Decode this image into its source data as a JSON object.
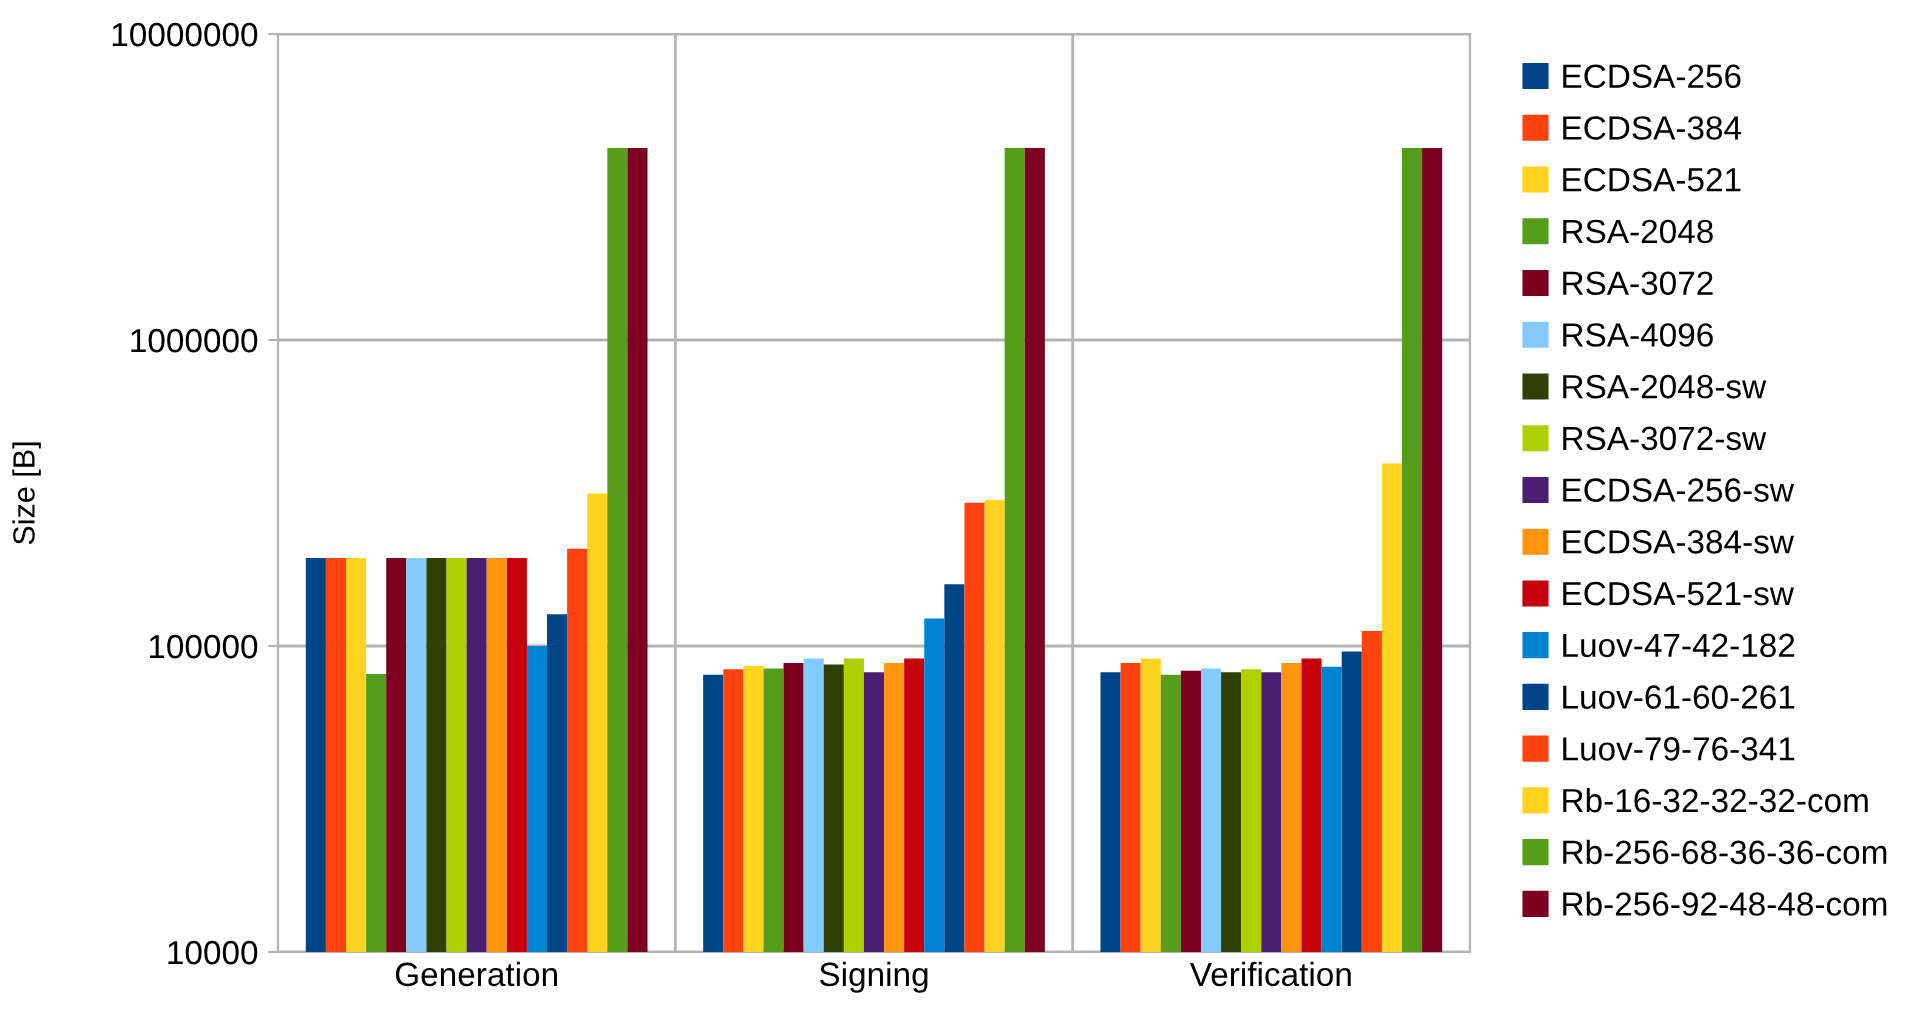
{
  "chart_data": {
    "type": "bar",
    "ylabel": "Size [B]",
    "categories": [
      "Generation",
      "Signing",
      "Verification"
    ],
    "log": "y",
    "ylim": [
      10000,
      10000000
    ],
    "yticks": [
      10000,
      100000,
      1000000,
      10000000
    ],
    "grid": "y",
    "legend": "right",
    "series": [
      {
        "name": "ECDSA-256",
        "color": "#004586",
        "values": [
          194000,
          80600,
          82000
        ]
      },
      {
        "name": "ECDSA-384",
        "color": "#ff420e",
        "values": [
          194000,
          84000,
          88000
        ]
      },
      {
        "name": "ECDSA-521",
        "color": "#ffd320",
        "values": [
          194000,
          86000,
          91000
        ]
      },
      {
        "name": "RSA-2048",
        "color": "#579d1c",
        "values": [
          81000,
          84500,
          80600
        ]
      },
      {
        "name": "RSA-3072",
        "color": "#7e0021",
        "values": [
          194000,
          88000,
          83000
        ]
      },
      {
        "name": "RSA-4096",
        "color": "#83caff",
        "values": [
          194000,
          91000,
          84500
        ]
      },
      {
        "name": "RSA-2048-sw",
        "color": "#314004",
        "values": [
          194000,
          87000,
          82000
        ]
      },
      {
        "name": "RSA-3072-sw",
        "color": "#aecf00",
        "values": [
          194000,
          91000,
          84000
        ]
      },
      {
        "name": "ECDSA-256-sw",
        "color": "#4b1f6f",
        "values": [
          194000,
          82000,
          82000
        ]
      },
      {
        "name": "ECDSA-384-sw",
        "color": "#ff950e",
        "values": [
          194000,
          88000,
          88000
        ]
      },
      {
        "name": "ECDSA-521-sw",
        "color": "#c5000b",
        "values": [
          194000,
          91000,
          91000
        ]
      },
      {
        "name": "Luov-47-42-182",
        "color": "#0084d1",
        "values": [
          100000,
          123000,
          85500
        ]
      },
      {
        "name": "Luov-61-60-261",
        "color": "#004586",
        "values": [
          127000,
          159000,
          96000
        ]
      },
      {
        "name": "Luov-79-76-341",
        "color": "#ff420e",
        "values": [
          208000,
          294000,
          112000
        ]
      },
      {
        "name": "Rb-16-32-32-32-com",
        "color": "#ffd320",
        "values": [
          315000,
          300000,
          395000
        ]
      },
      {
        "name": "Rb-256-68-36-36-com",
        "color": "#579d1c",
        "values": [
          4240000,
          4240000,
          4240000
        ]
      },
      {
        "name": "Rb-256-92-48-48-com",
        "color": "#7e0021",
        "values": [
          4240000,
          4240000,
          4240000
        ]
      }
    ]
  }
}
